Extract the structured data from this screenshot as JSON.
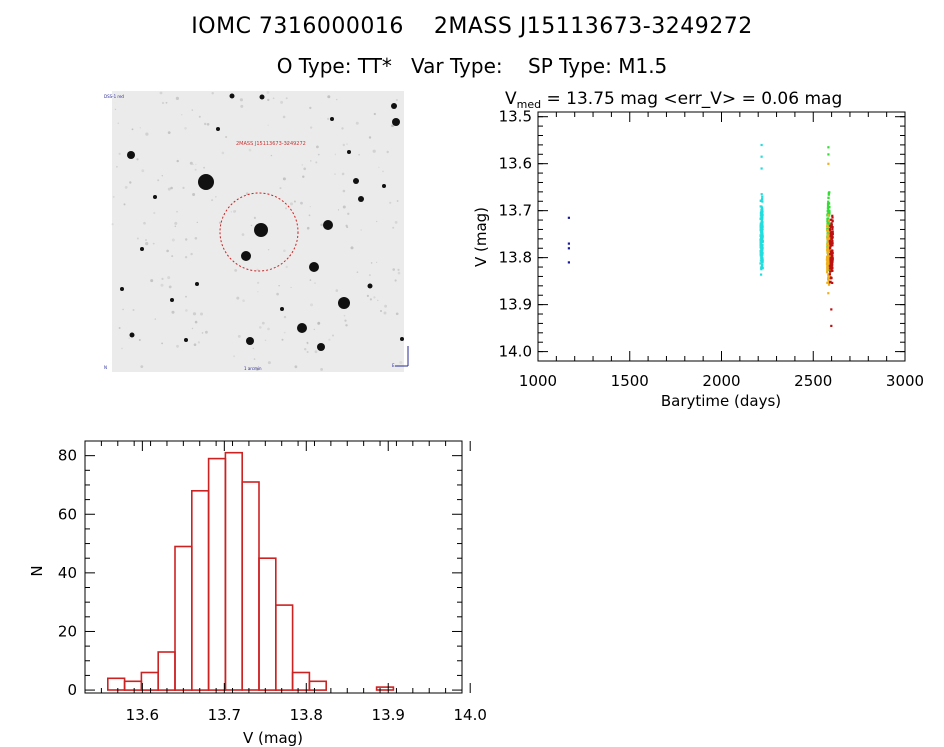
{
  "header": {
    "line1": "IOMC 7316000016    2MASS J15113673-3249272",
    "line2": "O Type: TT*   Var Type:    SP Type: M1.5"
  },
  "finder": {
    "label_top_left": "DSS-1 red",
    "label_target": "2MASS J15113673-3249272",
    "label_bottom_left": "N",
    "label_bottom_center": "1 arcmin",
    "label_bottom_right": "E"
  },
  "chart_data": [
    {
      "type": "scatter",
      "title_prefix": "V",
      "title_sub": "med",
      "title_rest": " = 13.75 mag <err_V> = 0.06 mag",
      "xlabel": "Barytime (days)",
      "ylabel": "V (mag)",
      "xlim": [
        1000,
        3000
      ],
      "ylim": [
        14.02,
        13.49
      ],
      "x_ticks": [
        1000,
        1500,
        2000,
        2500,
        3000
      ],
      "y_ticks": [
        13.5,
        13.6,
        13.7,
        13.8,
        13.9,
        14.0
      ],
      "y_tick_labels": [
        "13.5",
        "13.6",
        "13.7",
        "13.8",
        "13.9",
        "14.0"
      ],
      "series": [
        {
          "color": "#1a1aa0",
          "x": [
            1168,
            1168,
            1168,
            1168
          ],
          "y": [
            13.715,
            13.77,
            13.78,
            13.81
          ]
        },
        {
          "color": "#22dddd",
          "x_min": 2212,
          "x_max": 2224,
          "y_min": 13.65,
          "y_max": 13.86,
          "outliers": [
            13.56,
            13.585,
            13.61
          ],
          "count": 180
        },
        {
          "color": "#33dd33",
          "x_min": 2576,
          "x_max": 2588,
          "y_min": 13.63,
          "y_max": 13.85,
          "outliers": [
            13.565,
            13.58
          ],
          "count": 120
        },
        {
          "color": "#eeb020",
          "x_min": 2574,
          "x_max": 2590,
          "y_min": 13.68,
          "y_max": 13.89,
          "outliers": [
            13.6
          ],
          "count": 80
        },
        {
          "color": "#bb1111",
          "x_min": 2590,
          "x_max": 2606,
          "y_min": 13.66,
          "y_max": 13.88,
          "outliers": [
            13.91,
            13.945
          ],
          "count": 100
        }
      ]
    },
    {
      "type": "bar",
      "xlabel": "V (mag)",
      "ylabel": "N",
      "xlim": [
        13.53,
        13.99
      ],
      "ylim": [
        -1,
        85
      ],
      "x_ticks": [
        13.6,
        13.7,
        13.8,
        13.9,
        14.0
      ],
      "x_tick_labels": [
        "13.6",
        "13.7",
        "13.8",
        "13.9",
        "14.0"
      ],
      "y_ticks": [
        0,
        20,
        40,
        60,
        80
      ],
      "bin_width": 0.0205,
      "bin_starts": [
        13.5578,
        13.5783,
        13.5988,
        13.6193,
        13.6398,
        13.6603,
        13.6808,
        13.7013,
        13.7218,
        13.7423,
        13.7628,
        13.7833,
        13.8038,
        13.8243,
        13.8448,
        13.8653,
        13.8858,
        13.9063,
        13.9268,
        13.9473
      ],
      "values": [
        4,
        3,
        6,
        13,
        49,
        68,
        79,
        81,
        71,
        45,
        29,
        6,
        3,
        0,
        0,
        0,
        1,
        0,
        0,
        0
      ],
      "bin_starts_note": "",
      "color": "#cc2222"
    }
  ]
}
